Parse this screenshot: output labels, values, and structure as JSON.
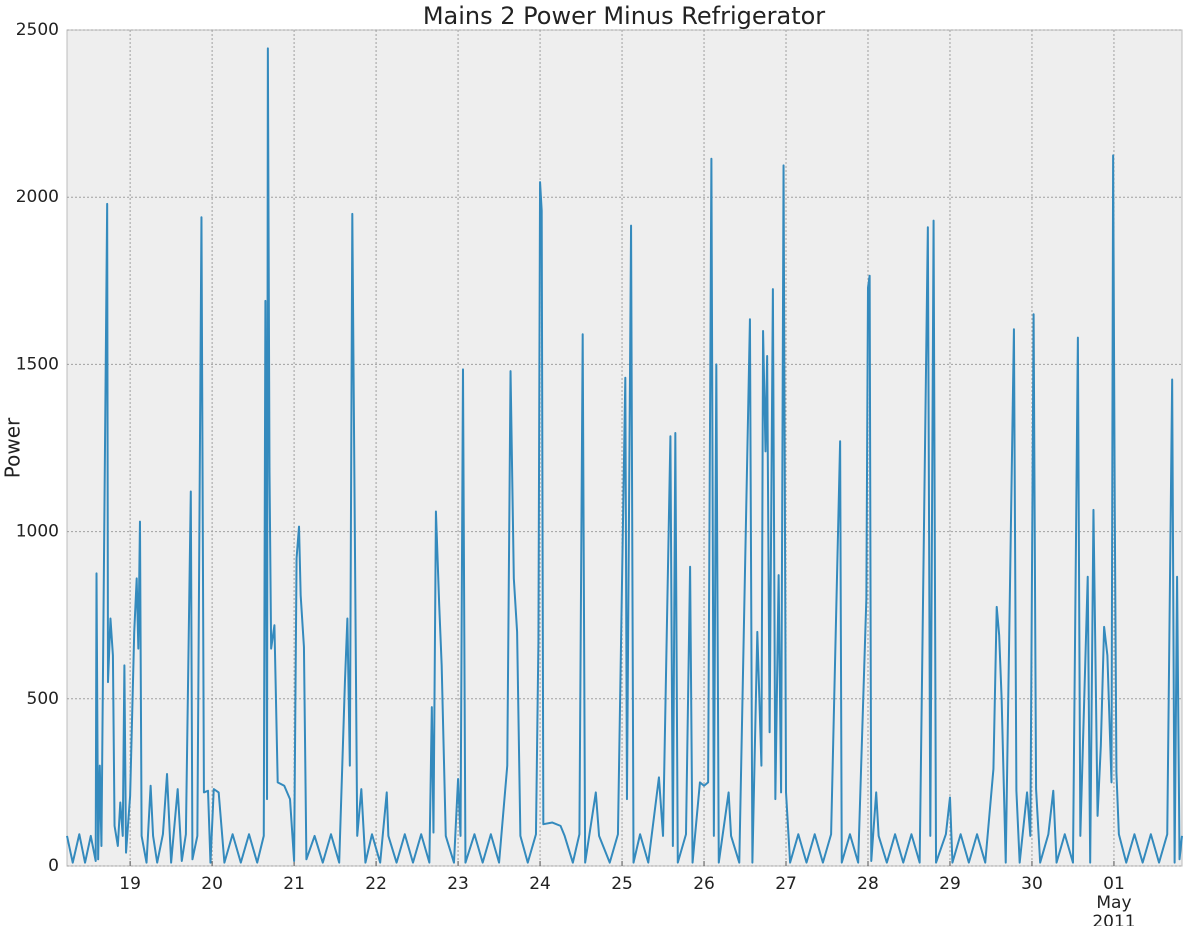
{
  "chart_data": {
    "type": "line",
    "title": "Mains 2 Power Minus Refrigerator",
    "ylabel": "Power",
    "xlim": [
      18.23,
      31.83
    ],
    "ylim": [
      0,
      2500
    ],
    "yticks": [
      0,
      500,
      1000,
      1500,
      2000,
      2500
    ],
    "xticks": [
      19,
      20,
      21,
      22,
      23,
      24,
      25,
      26,
      27,
      28,
      29,
      30,
      {
        "value": 31,
        "label": "01\nMay\n2011"
      }
    ],
    "grid": true,
    "series": [
      {
        "color": "#348abd",
        "x": [
          18.23,
          18.3,
          18.38,
          18.45,
          18.52,
          18.58,
          18.59,
          18.61,
          18.63,
          18.65,
          18.72,
          18.73,
          18.76,
          18.79,
          18.81,
          18.85,
          18.88,
          18.91,
          18.93,
          18.95,
          19.0,
          19.05,
          19.08,
          19.1,
          19.12,
          19.14,
          19.2,
          19.25,
          19.28,
          19.33,
          19.4,
          19.45,
          19.5,
          19.58,
          19.63,
          19.68,
          19.74,
          19.76,
          19.82,
          19.87,
          19.9,
          19.95,
          19.98,
          20.02,
          20.08,
          20.15,
          20.25,
          20.35,
          20.45,
          20.55,
          20.63,
          20.65,
          20.67,
          20.68,
          20.7,
          20.72,
          20.76,
          20.8,
          20.88,
          20.95,
          21.0,
          21.03,
          21.06,
          21.08,
          21.12,
          21.15,
          21.25,
          21.35,
          21.45,
          21.55,
          21.62,
          21.65,
          21.68,
          21.71,
          21.74,
          21.77,
          21.82,
          21.87,
          21.95,
          22.05,
          22.13,
          22.15,
          22.25,
          22.35,
          22.45,
          22.55,
          22.65,
          22.68,
          22.7,
          22.73,
          22.77,
          22.8,
          22.85,
          22.95,
          23.0,
          23.03,
          23.06,
          23.09,
          23.2,
          23.3,
          23.4,
          23.5,
          23.6,
          23.64,
          23.68,
          23.72,
          23.76,
          23.85,
          23.95,
          23.98,
          24.0,
          24.02,
          24.04,
          24.15,
          24.25,
          24.3,
          24.4,
          24.48,
          24.52,
          24.55,
          24.68,
          24.72,
          24.85,
          24.95,
          25.04,
          25.06,
          25.11,
          25.14,
          25.22,
          25.32,
          25.45,
          25.5,
          25.59,
          25.62,
          25.65,
          25.68,
          25.78,
          25.83,
          25.86,
          25.95,
          26.0,
          26.05,
          26.09,
          26.12,
          26.15,
          26.18,
          26.3,
          26.33,
          26.43,
          26.56,
          26.59,
          26.65,
          26.7,
          26.72,
          26.75,
          26.77,
          26.8,
          26.84,
          26.87,
          26.91,
          26.94,
          26.97,
          27.0,
          27.05,
          27.15,
          27.25,
          27.35,
          27.45,
          27.55,
          27.66,
          27.68,
          27.78,
          27.88,
          27.98,
          28.0,
          28.02,
          28.04,
          28.1,
          28.13,
          28.23,
          28.33,
          28.43,
          28.53,
          28.63,
          28.73,
          28.76,
          28.8,
          28.83,
          28.95,
          29.0,
          29.03,
          29.13,
          29.23,
          29.33,
          29.43,
          29.53,
          29.57,
          29.6,
          29.63,
          29.68,
          29.78,
          29.81,
          29.85,
          29.94,
          29.98,
          30.02,
          30.05,
          30.1,
          30.2,
          30.26,
          30.3,
          30.4,
          30.5,
          30.56,
          30.59,
          30.68,
          30.71,
          30.75,
          30.8,
          30.84,
          30.88,
          30.92,
          30.97,
          30.99,
          31.01,
          31.03,
          31.06,
          31.15,
          31.25,
          31.35,
          31.45,
          31.55,
          31.65,
          31.71,
          31.74,
          31.77,
          31.8,
          31.83
        ],
        "values": [
          90,
          10,
          95,
          10,
          90,
          15,
          875,
          20,
          300,
          60,
          1980,
          550,
          740,
          630,
          120,
          60,
          190,
          90,
          600,
          40,
          210,
          700,
          860,
          650,
          1030,
          90,
          10,
          240,
          90,
          10,
          95,
          275,
          10,
          230,
          15,
          95,
          1120,
          20,
          90,
          1940,
          220,
          225,
          10,
          230,
          220,
          10,
          95,
          10,
          95,
          10,
          90,
          1690,
          200,
          2445,
          1180,
          650,
          720,
          250,
          240,
          200,
          15,
          920,
          1015,
          810,
          655,
          20,
          90,
          10,
          95,
          10,
          550,
          740,
          300,
          1950,
          1020,
          90,
          230,
          10,
          95,
          10,
          220,
          90,
          10,
          95,
          10,
          95,
          10,
          475,
          100,
          1060,
          780,
          600,
          90,
          10,
          260,
          90,
          1485,
          10,
          95,
          10,
          95,
          10,
          300,
          1480,
          860,
          700,
          90,
          10,
          95,
          670,
          2045,
          1960,
          125,
          130,
          120,
          90,
          10,
          95,
          1590,
          10,
          220,
          90,
          10,
          95,
          1460,
          200,
          1915,
          10,
          95,
          10,
          265,
          90,
          1285,
          60,
          1295,
          10,
          95,
          895,
          10,
          250,
          240,
          250,
          2115,
          90,
          1500,
          10,
          220,
          90,
          10,
          1635,
          10,
          700,
          300,
          1600,
          1240,
          1525,
          400,
          1725,
          200,
          870,
          220,
          2095,
          220,
          10,
          95,
          10,
          95,
          10,
          95,
          1270,
          10,
          95,
          10,
          800,
          1730,
          1765,
          15,
          220,
          90,
          10,
          95,
          10,
          95,
          10,
          1910,
          90,
          1930,
          10,
          95,
          205,
          10,
          95,
          10,
          95,
          10,
          290,
          775,
          690,
          500,
          10,
          1605,
          225,
          10,
          220,
          90,
          1650,
          230,
          10,
          95,
          225,
          10,
          95,
          10,
          1580,
          90,
          865,
          10,
          1065,
          150,
          360,
          715,
          630,
          250,
          2125,
          1060,
          280,
          95,
          10,
          95,
          10,
          95,
          10,
          95,
          1455,
          10,
          865,
          20,
          90
        ]
      }
    ]
  }
}
